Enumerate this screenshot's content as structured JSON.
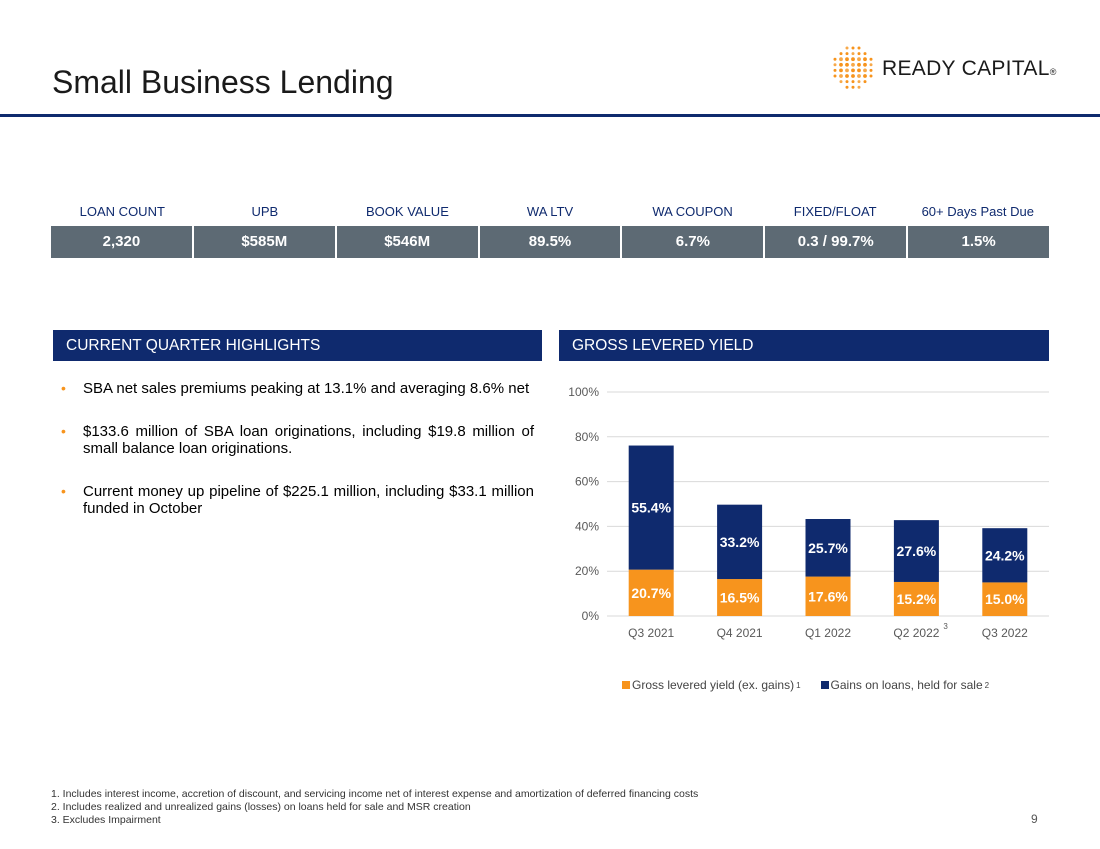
{
  "header": {
    "title": "Small Business Lending",
    "logo_text": "READY CAPITAL",
    "logo_mark": "®"
  },
  "metrics": {
    "labels": [
      "LOAN COUNT",
      "UPB",
      "BOOK VALUE",
      "WA LTV",
      "WA COUPON",
      "FIXED/FLOAT",
      "60+ Days Past Due"
    ],
    "values": [
      "2,320",
      "$585M",
      "$546M",
      "89.5%",
      "6.7%",
      "0.3 / 99.7%",
      "1.5%"
    ]
  },
  "highlights": {
    "heading": "CURRENT QUARTER HIGHLIGHTS",
    "items": [
      "SBA net sales premiums peaking at 13.1% and averaging 8.6% net",
      "$133.6 million of SBA loan originations, including $19.8 million of small balance loan originations.",
      "Current money up pipeline of $225.1 million, including $33.1 million funded in October"
    ],
    "bullet_char": "•"
  },
  "yield_section": {
    "heading": "GROSS LEVERED YIELD"
  },
  "chart_data": {
    "type": "bar",
    "stacked": true,
    "categories": [
      "Q3 2021",
      "Q4 2021",
      "Q1 2022",
      "Q2 2022",
      "Q3 2022"
    ],
    "category_superscripts": [
      "",
      "",
      "",
      "3",
      ""
    ],
    "series": [
      {
        "name": "Gross levered yield (ex. gains)",
        "footnote": "1",
        "values": [
          20.7,
          16.5,
          17.6,
          15.2,
          15.0
        ],
        "labels": [
          "20.7%",
          "16.5%",
          "17.6%",
          "15.2%",
          "15.0%"
        ],
        "color": "#f7941d"
      },
      {
        "name": "Gains on loans, held for sale",
        "footnote": "2",
        "values": [
          55.4,
          33.2,
          25.7,
          27.6,
          24.2
        ],
        "labels": [
          "55.4%",
          "33.2%",
          "25.7%",
          "27.6%",
          "24.2%"
        ],
        "color": "#0f2a6e"
      }
    ],
    "yticks": [
      "0%",
      "20%",
      "40%",
      "60%",
      "80%",
      "100%"
    ],
    "ylim": [
      0,
      100
    ],
    "grid": true,
    "legend_position": "bottom"
  },
  "footnotes": [
    "1. Includes interest income, accretion of discount, and servicing income net of interest expense and amortization of deferred financing costs",
    "2. Includes realized and unrealized gains (losses) on loans held for sale and MSR creation",
    "3. Excludes Impairment"
  ],
  "page_number": "9",
  "colors": {
    "navy": "#0f2a6e",
    "orange": "#f7941d",
    "metric_bar": "#5d6a74"
  }
}
